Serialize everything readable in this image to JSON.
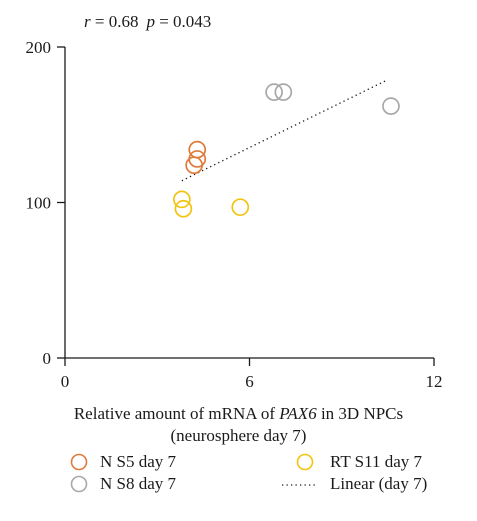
{
  "chart_data": {
    "type": "scatter",
    "title": "",
    "xlabel_parts": [
      "Relative amount of mRNA of ",
      "PAX6",
      " in 3D NPCs"
    ],
    "xlabel_line2": "(neurosphere day 7)",
    "ylabel": "",
    "xlim": [
      0,
      12
    ],
    "ylim": [
      0,
      200
    ],
    "x_ticks": [
      0,
      6,
      12
    ],
    "y_ticks": [
      0,
      100,
      200
    ],
    "x_tick_labels": [
      "0",
      "6",
      "12"
    ],
    "y_tick_labels": [
      "0",
      "100",
      "200"
    ],
    "grid": false,
    "legend_position": "bottom",
    "annotation": {
      "r_symbol": "r",
      "r_text": " = 0.68",
      "p_symbol": "p",
      "p_text": " = 0.043"
    },
    "series": [
      {
        "name": "N S5 day 7",
        "color": "#e07a3c",
        "marker": "open-circle",
        "points": [
          {
            "x": 4.3,
            "y": 134
          },
          {
            "x": 4.3,
            "y": 128
          },
          {
            "x": 4.2,
            "y": 124
          }
        ]
      },
      {
        "name": "N S8 day 7",
        "color": "#a8a8a8",
        "marker": "open-circle",
        "points": [
          {
            "x": 6.8,
            "y": 171
          },
          {
            "x": 7.1,
            "y": 171
          },
          {
            "x": 10.6,
            "y": 162
          }
        ]
      },
      {
        "name": "RT S11 day 7",
        "color": "#f2c40f",
        "marker": "open-circle",
        "points": [
          {
            "x": 3.8,
            "y": 102
          },
          {
            "x": 3.85,
            "y": 96
          },
          {
            "x": 5.7,
            "y": 97
          }
        ]
      }
    ],
    "trendline": {
      "name": "Linear (day 7)",
      "color": "#1a1a1a",
      "style": "dotted",
      "points": [
        {
          "x": 3.8,
          "y": 114
        },
        {
          "x": 10.5,
          "y": 179
        }
      ]
    }
  }
}
